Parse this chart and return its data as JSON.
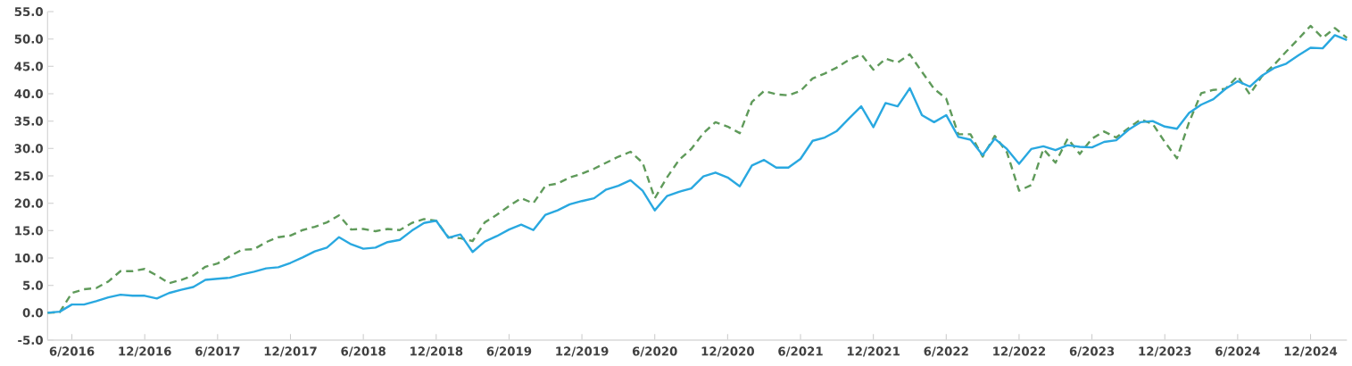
{
  "chart_data": {
    "type": "line",
    "x": [
      "2016-04",
      "2016-05",
      "2016-06",
      "2016-07",
      "2016-08",
      "2016-09",
      "2016-10",
      "2016-11",
      "2016-12",
      "2017-01",
      "2017-02",
      "2017-03",
      "2017-04",
      "2017-05",
      "2017-06",
      "2017-07",
      "2017-08",
      "2017-09",
      "2017-10",
      "2017-11",
      "2017-12",
      "2018-01",
      "2018-02",
      "2018-03",
      "2018-04",
      "2018-05",
      "2018-06",
      "2018-07",
      "2018-08",
      "2018-09",
      "2018-10",
      "2018-11",
      "2018-12",
      "2019-01",
      "2019-02",
      "2019-03",
      "2019-04",
      "2019-05",
      "2019-06",
      "2019-07",
      "2019-08",
      "2019-09",
      "2019-10",
      "2019-11",
      "2019-12",
      "2020-01",
      "2020-02",
      "2020-03",
      "2020-04",
      "2020-05",
      "2020-06",
      "2020-07",
      "2020-08",
      "2020-09",
      "2020-10",
      "2020-11",
      "2020-12",
      "2021-01",
      "2021-02",
      "2021-03",
      "2021-04",
      "2021-05",
      "2021-06",
      "2021-07",
      "2021-08",
      "2021-09",
      "2021-10",
      "2021-11",
      "2021-12",
      "2022-01",
      "2022-02",
      "2022-03",
      "2022-04",
      "2022-05",
      "2022-06",
      "2022-07",
      "2022-08",
      "2022-09",
      "2022-10",
      "2022-11",
      "2022-12",
      "2023-01",
      "2023-02",
      "2023-03",
      "2023-04",
      "2023-05",
      "2023-06",
      "2023-07",
      "2023-08",
      "2023-09",
      "2023-10",
      "2023-11",
      "2023-12",
      "2024-01",
      "2024-02",
      "2024-03",
      "2024-04",
      "2024-05",
      "2024-06",
      "2024-07",
      "2024-08",
      "2024-09",
      "2024-10",
      "2024-11",
      "2024-12",
      "2025-01",
      "2025-02",
      "2025-03"
    ],
    "series": [
      {
        "color": "#5f9a5a",
        "line_style": "dashed",
        "values": [
          0,
          0.1,
          3.6,
          4.3,
          4.5,
          5.7,
          7.6,
          7.6,
          8.0,
          6.8,
          5.4,
          6.0,
          6.8,
          8.4,
          9.0,
          10.3,
          11.5,
          11.6,
          12.9,
          13.8,
          14.1,
          15.1,
          15.7,
          16.5,
          17.8,
          15.2,
          15.3,
          14.9,
          15.3,
          15.1,
          16.4,
          17.1,
          16.8,
          13.8,
          13.6,
          13.1,
          16.5,
          17.9,
          19.5,
          20.9,
          20.0,
          23.2,
          23.6,
          24.7,
          25.4,
          26.3,
          27.4,
          28.5,
          29.4,
          27.4,
          20.9,
          24.7,
          27.9,
          29.9,
          32.8,
          34.8,
          34.0,
          32.8,
          38.5,
          40.5,
          39.9,
          39.7,
          40.5,
          42.8,
          43.7,
          44.8,
          46.2,
          47.2,
          44.4,
          46.4,
          45.7,
          47.2,
          44.0,
          40.9,
          39.1,
          32.6,
          32.6,
          28.5,
          32.3,
          29.3,
          22.3,
          23.3,
          29.9,
          27.4,
          31.8,
          29.0,
          31.8,
          33.1,
          32.0,
          33.7,
          35.3,
          34.5,
          31.2,
          28.2,
          34.8,
          40.1,
          40.7,
          40.9,
          43.2,
          39.9,
          43.2,
          45.3,
          47.7,
          50.0,
          52.4,
          50.2,
          52.0,
          50.2
        ]
      },
      {
        "color": "#29a8e0",
        "line_style": "solid",
        "values": [
          0,
          0.2,
          1.5,
          1.5,
          2.1,
          2.8,
          3.3,
          3.1,
          3.1,
          2.6,
          3.6,
          4.2,
          4.7,
          6.0,
          6.2,
          6.4,
          7.0,
          7.5,
          8.1,
          8.3,
          9.1,
          10.1,
          11.2,
          11.9,
          13.8,
          12.5,
          11.7,
          11.9,
          12.9,
          13.3,
          15.0,
          16.4,
          16.8,
          13.7,
          14.3,
          11.1,
          13.0,
          14.0,
          15.2,
          16.1,
          15.1,
          17.9,
          18.7,
          19.8,
          20.4,
          20.9,
          22.5,
          23.2,
          24.2,
          22.3,
          18.7,
          21.3,
          22.1,
          22.7,
          24.9,
          25.6,
          24.7,
          23.1,
          26.9,
          27.9,
          26.5,
          26.5,
          28.1,
          31.4,
          32.0,
          33.2,
          35.5,
          37.7,
          33.9,
          38.3,
          37.7,
          41.0,
          36.1,
          34.8,
          36.1,
          32.1,
          31.6,
          28.8,
          31.8,
          29.9,
          27.2,
          29.9,
          30.4,
          29.7,
          30.6,
          30.3,
          30.2,
          31.2,
          31.5,
          33.4,
          34.8,
          35.0,
          34.0,
          33.6,
          36.5,
          38.0,
          39.0,
          40.9,
          42.3,
          41.3,
          43.3,
          44.7,
          45.5,
          47.0,
          48.4,
          48.3,
          50.7,
          49.8
        ]
      }
    ],
    "xlim": [
      "2016-04",
      "2025-03"
    ],
    "xticks": [
      {
        "value": "2016-06",
        "label": "6/2016"
      },
      {
        "value": "2016-12",
        "label": "12/2016"
      },
      {
        "value": "2017-06",
        "label": "6/2017"
      },
      {
        "value": "2017-12",
        "label": "12/2017"
      },
      {
        "value": "2018-06",
        "label": "6/2018"
      },
      {
        "value": "2018-12",
        "label": "12/2018"
      },
      {
        "value": "2019-06",
        "label": "6/2019"
      },
      {
        "value": "2019-12",
        "label": "12/2019"
      },
      {
        "value": "2020-06",
        "label": "6/2020"
      },
      {
        "value": "2020-12",
        "label": "12/2020"
      },
      {
        "value": "2021-06",
        "label": "6/2021"
      },
      {
        "value": "2021-12",
        "label": "12/2021"
      },
      {
        "value": "2022-06",
        "label": "6/2022"
      },
      {
        "value": "2022-12",
        "label": "12/2022"
      },
      {
        "value": "2023-06",
        "label": "6/2023"
      },
      {
        "value": "2023-12",
        "label": "12/2023"
      },
      {
        "value": "2024-06",
        "label": "6/2024"
      },
      {
        "value": "2024-12",
        "label": "12/2024"
      }
    ],
    "ylim": [
      -5,
      55
    ],
    "yticks": [
      {
        "value": -5,
        "label": "-5.0"
      },
      {
        "value": 0,
        "label": "0.0"
      },
      {
        "value": 5,
        "label": "5.0"
      },
      {
        "value": 10,
        "label": "10.0"
      },
      {
        "value": 15,
        "label": "15.0"
      },
      {
        "value": 20,
        "label": "20.0"
      },
      {
        "value": 25,
        "label": "25.0"
      },
      {
        "value": 30,
        "label": "30.0"
      },
      {
        "value": 35,
        "label": "35.0"
      },
      {
        "value": 40,
        "label": "40.0"
      },
      {
        "value": 45,
        "label": "45.0"
      },
      {
        "value": 50,
        "label": "50.0"
      },
      {
        "value": 55,
        "label": "55.0"
      }
    ],
    "marker": "none"
  }
}
